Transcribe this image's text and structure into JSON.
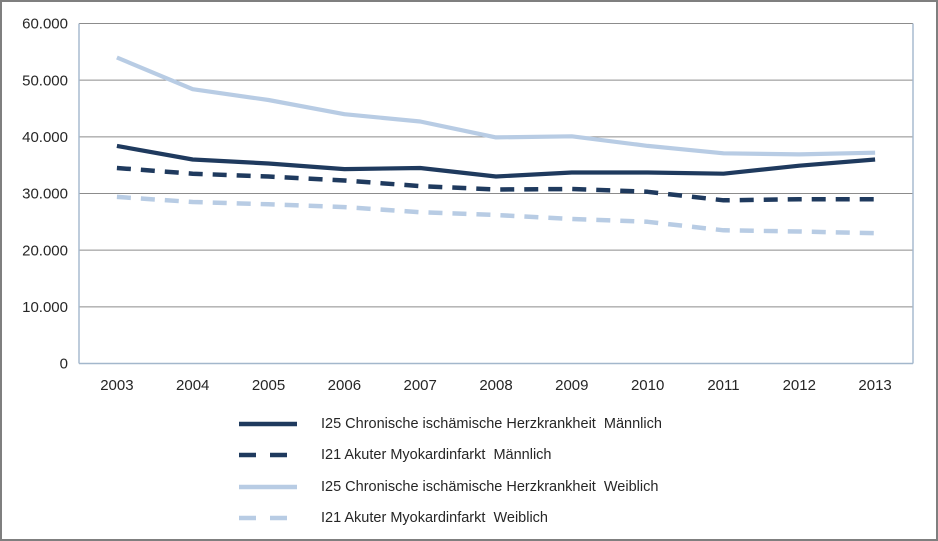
{
  "colors": {
    "dark_blue": "#1f3a5e",
    "light_blue": "#b8cce4",
    "gridline": "#8c8c8c",
    "plot_border": "#a3b7cc",
    "text": "#262626",
    "frame_border": "#7f7f7f",
    "background": "#ffffff"
  },
  "chart_data": {
    "type": "line",
    "x": [
      2003,
      2004,
      2005,
      2006,
      2007,
      2008,
      2009,
      2010,
      2011,
      2012,
      2013
    ],
    "x_ticks": [
      "2003",
      "2004",
      "2005",
      "2006",
      "2007",
      "2008",
      "2009",
      "2010",
      "2011",
      "2012",
      "2013"
    ],
    "y_ticks": [
      "0",
      "10.000",
      "20.000",
      "30.000",
      "40.000",
      "50.000",
      "60.000"
    ],
    "ylim": [
      0,
      60000
    ],
    "y_major_unit": 10000,
    "grid": true,
    "legend_position": "bottom",
    "series": [
      {
        "name": "I25 Chronische ischämische Herzkrankheit  Männlich",
        "color": "#1f3a5e",
        "dash": "solid",
        "values": [
          38400,
          36000,
          35300,
          34300,
          34500,
          33000,
          33700,
          33700,
          33500,
          34900,
          36000
        ]
      },
      {
        "name": "I21 Akuter Myokardinfarkt  Männlich",
        "color": "#1f3a5e",
        "dash": "dashed",
        "values": [
          34500,
          33500,
          33000,
          32300,
          31300,
          30700,
          30800,
          30300,
          28800,
          29000,
          29000
        ]
      },
      {
        "name": "I25 Chronische ischämische Herzkrankheit  Weiblich",
        "color": "#b8cce4",
        "dash": "solid",
        "values": [
          54000,
          48400,
          46500,
          44000,
          42700,
          39900,
          40100,
          38400,
          37100,
          36900,
          37200
        ]
      },
      {
        "name": "I21 Akuter Myokardinfarkt  Weiblich",
        "color": "#b8cce4",
        "dash": "dashed",
        "values": [
          29400,
          28500,
          28100,
          27600,
          26700,
          26200,
          25500,
          25000,
          23500,
          23300,
          23000
        ]
      }
    ]
  }
}
